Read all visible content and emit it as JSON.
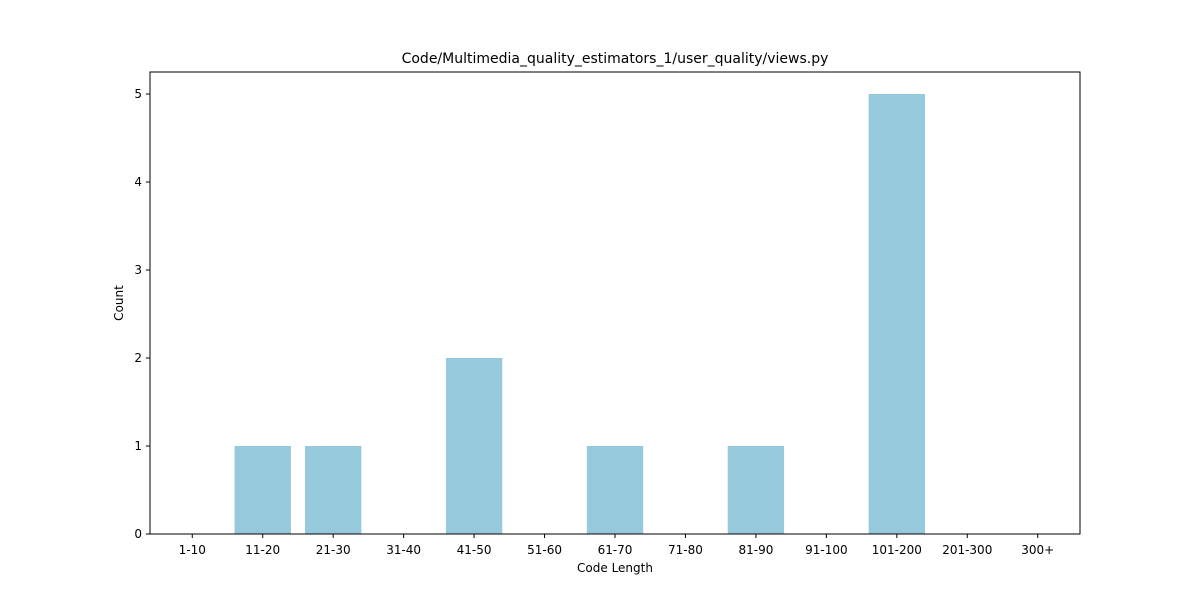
{
  "chart_data": {
    "type": "bar",
    "title": "Code/Multimedia_quality_estimators_1/user_quality/views.py",
    "xlabel": "Code Length",
    "ylabel": "Count",
    "categories": [
      "1-10",
      "11-20",
      "21-30",
      "31-40",
      "41-50",
      "51-60",
      "61-70",
      "71-80",
      "81-90",
      "91-100",
      "101-200",
      "201-300",
      "300+"
    ],
    "values": [
      0,
      1,
      1,
      0,
      2,
      0,
      1,
      0,
      1,
      0,
      5,
      0,
      0
    ],
    "ylim": [
      0,
      5.25
    ],
    "yticks": [
      "0",
      "1",
      "2",
      "3",
      "4",
      "5"
    ],
    "bar_color": "#96c9dc",
    "grid": false,
    "legend": "none"
  }
}
